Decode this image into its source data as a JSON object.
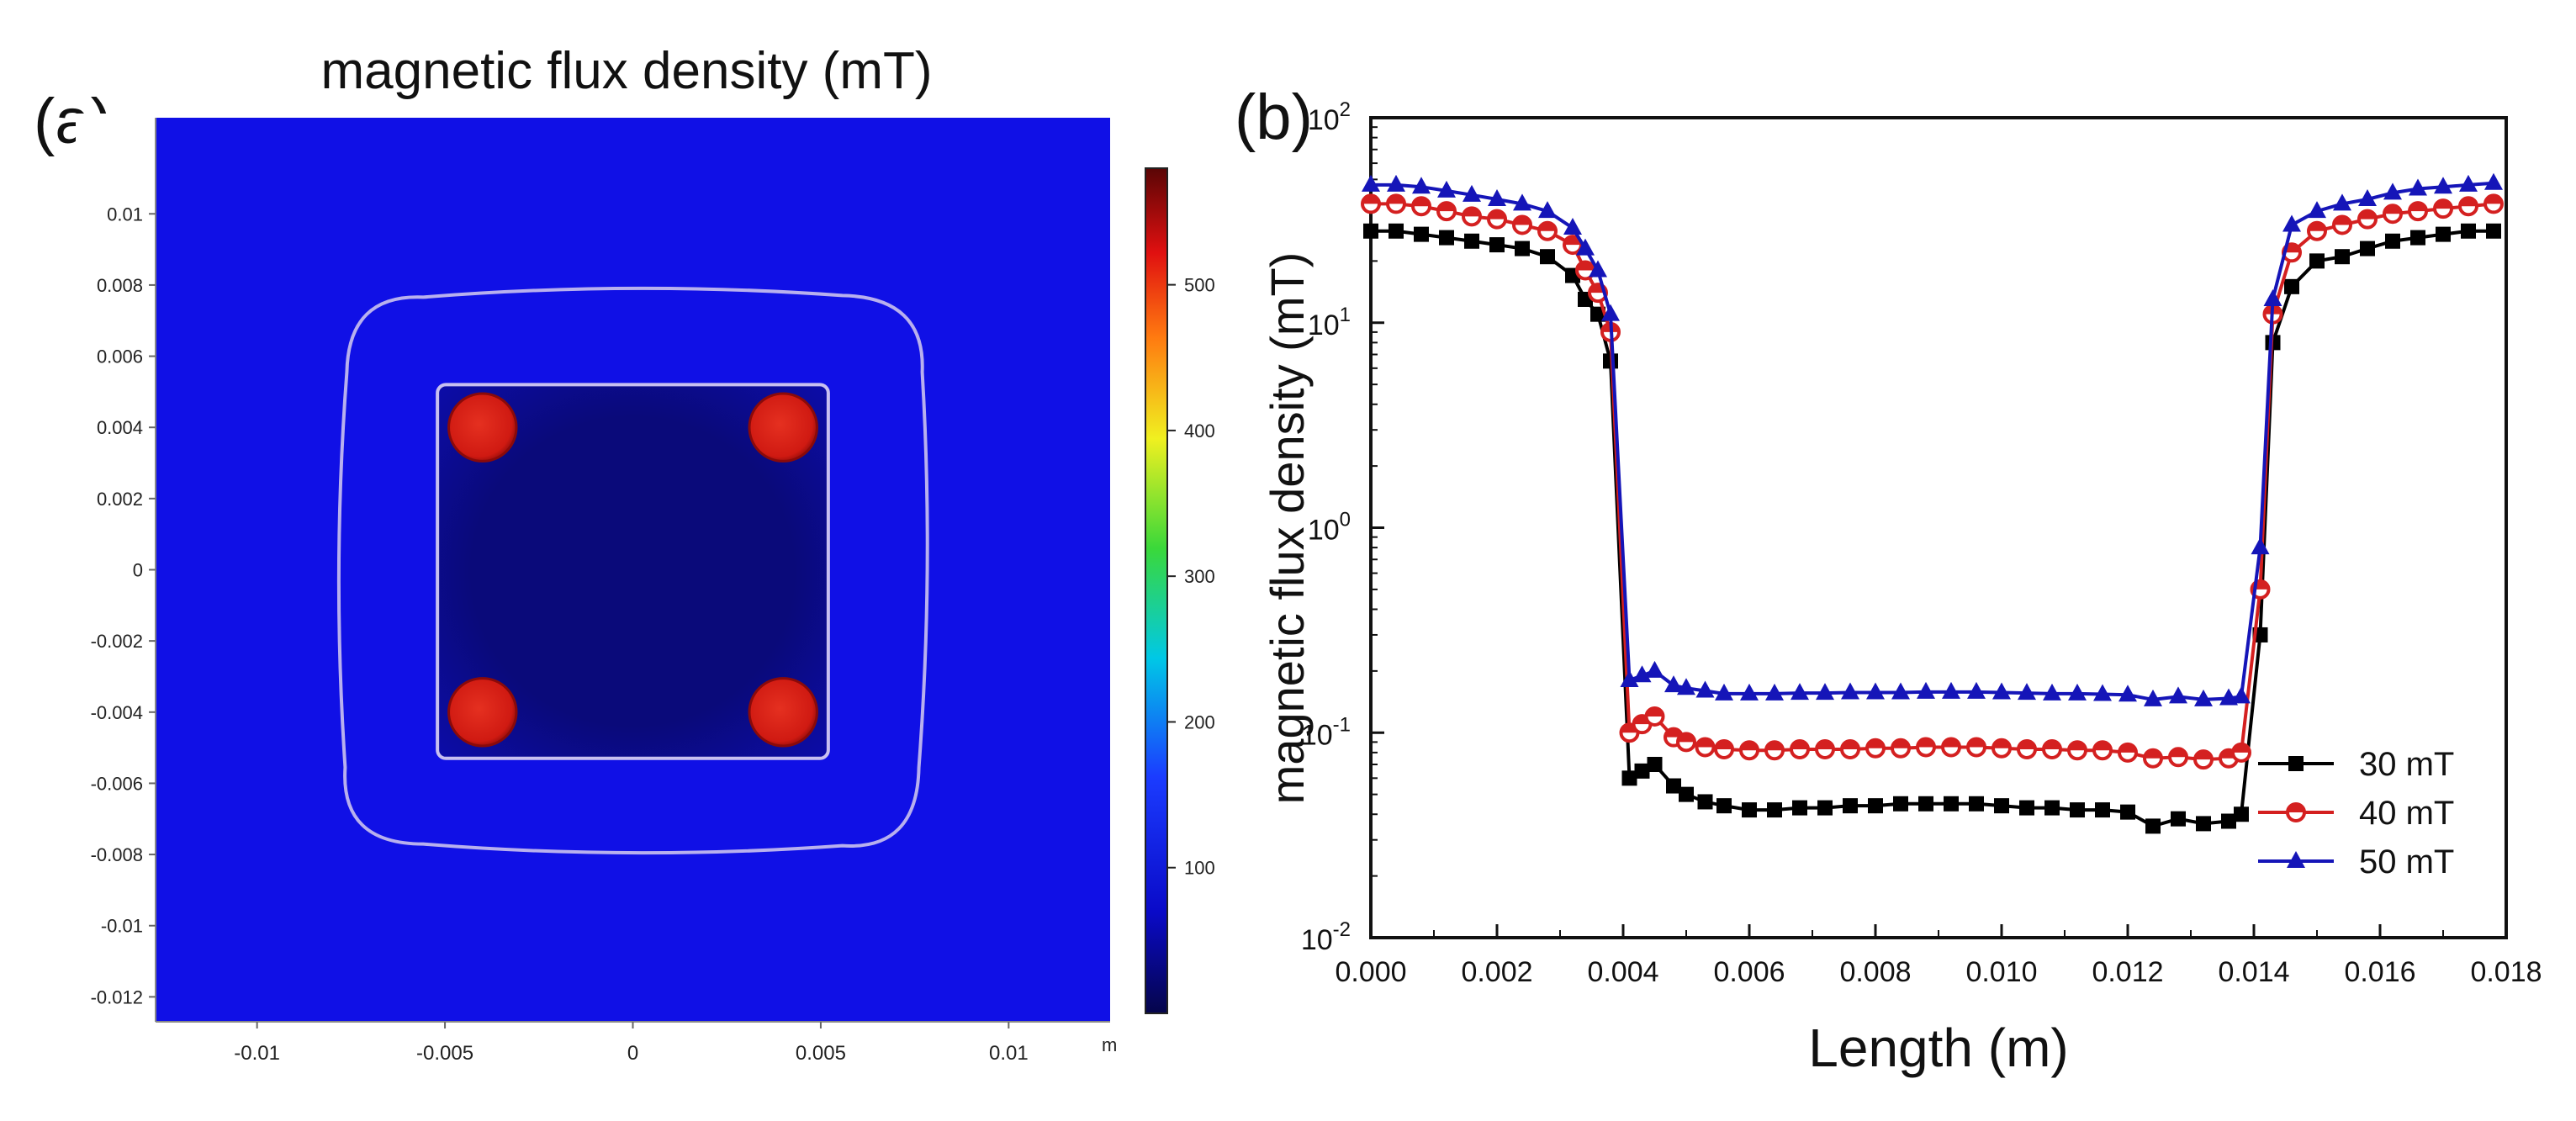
{
  "panel_labels": {
    "a": "(a)",
    "b": "(b)"
  },
  "colors": {
    "field_background": "#1010e6",
    "field_inner": "#0a0a80",
    "magnet": "#e02a18",
    "contour": "#b8b0ee",
    "series_30": "#000000",
    "series_40": "#d42020",
    "series_50": "#1515b8"
  },
  "chart_data": [
    {
      "type": "heatmap",
      "title": "magnetic flux density (mT)",
      "xlim": [
        -0.0127,
        0.0127
      ],
      "ylim": [
        -0.0127,
        0.0127
      ],
      "x_unit": "m",
      "x_ticks": [
        {
          "v": -0.01,
          "label": "-0.01"
        },
        {
          "v": -0.005,
          "label": "-0.005"
        },
        {
          "v": 0,
          "label": "0"
        },
        {
          "v": 0.005,
          "label": "0.005"
        },
        {
          "v": 0.01,
          "label": "0.01"
        }
      ],
      "y_ticks": [
        {
          "v": 0.01,
          "label": "0.01"
        },
        {
          "v": 0.008,
          "label": "0.008"
        },
        {
          "v": 0.006,
          "label": "0.006"
        },
        {
          "v": 0.004,
          "label": "0.004"
        },
        {
          "v": 0.002,
          "label": "0.002"
        },
        {
          "v": 0,
          "label": "0"
        },
        {
          "v": -0.002,
          "label": "-0.002"
        },
        {
          "v": -0.004,
          "label": "-0.004"
        },
        {
          "v": -0.006,
          "label": "-0.006"
        },
        {
          "v": -0.008,
          "label": "-0.008"
        },
        {
          "v": -0.01,
          "label": "-0.01"
        },
        {
          "v": -0.012,
          "label": "-0.012"
        }
      ],
      "colorbar": {
        "range": [
          0,
          580
        ],
        "ticks": [
          {
            "v": 100,
            "label": "100"
          },
          {
            "v": 200,
            "label": "200"
          },
          {
            "v": 300,
            "label": "300"
          },
          {
            "v": 400,
            "label": "400"
          },
          {
            "v": 500,
            "label": "500"
          }
        ]
      },
      "magnets": [
        {
          "x": -0.004,
          "y": 0.004,
          "r": 0.0009
        },
        {
          "x": 0.004,
          "y": 0.004,
          "r": 0.0009
        },
        {
          "x": -0.004,
          "y": -0.004,
          "r": 0.0009
        },
        {
          "x": 0.004,
          "y": -0.004,
          "r": 0.0009
        }
      ],
      "inner_region": {
        "x0": -0.0052,
        "x1": 0.0052,
        "y0": -0.0053,
        "y1": 0.0052
      },
      "outer_contour": {
        "x0": -0.0077,
        "x1": 0.0077,
        "y0": -0.0078,
        "y1": 0.0078
      }
    },
    {
      "type": "line",
      "xlabel": "Length (m)",
      "ylabel": "magnetic flux density (mT)",
      "xlim": [
        0,
        0.018
      ],
      "ylim": [
        0.01,
        100
      ],
      "y_scale": "log",
      "legend_position": "right",
      "x_ticks": [
        {
          "v": 0,
          "label": "0.000"
        },
        {
          "v": 0.002,
          "label": "0.002"
        },
        {
          "v": 0.004,
          "label": "0.004"
        },
        {
          "v": 0.006,
          "label": "0.006"
        },
        {
          "v": 0.008,
          "label": "0.008"
        },
        {
          "v": 0.01,
          "label": "0.010"
        },
        {
          "v": 0.012,
          "label": "0.012"
        },
        {
          "v": 0.014,
          "label": "0.014"
        },
        {
          "v": 0.016,
          "label": "0.016"
        },
        {
          "v": 0.018,
          "label": "0.018"
        }
      ],
      "y_ticks": [
        {
          "v": 0.01,
          "base": "10",
          "exp": "-2"
        },
        {
          "v": 0.1,
          "base": "10",
          "exp": "-1"
        },
        {
          "v": 1,
          "base": "10",
          "exp": "0"
        },
        {
          "v": 10,
          "base": "10",
          "exp": "1"
        },
        {
          "v": 100,
          "base": "10",
          "exp": "2"
        }
      ],
      "series": [
        {
          "name": "30 mT",
          "color": "#000000",
          "marker": "square",
          "x": [
            0,
            0.0004,
            0.0008,
            0.0012,
            0.0016,
            0.002,
            0.0024,
            0.0028,
            0.0032,
            0.0034,
            0.0036,
            0.0038,
            0.0041,
            0.0043,
            0.0045,
            0.0048,
            0.005,
            0.0053,
            0.0056,
            0.006,
            0.0064,
            0.0068,
            0.0072,
            0.0076,
            0.008,
            0.0084,
            0.0088,
            0.0092,
            0.0096,
            0.01,
            0.0104,
            0.0108,
            0.0112,
            0.0116,
            0.012,
            0.0124,
            0.0128,
            0.0132,
            0.0136,
            0.0138,
            0.0141,
            0.0143,
            0.0146,
            0.015,
            0.0154,
            0.0158,
            0.0162,
            0.0166,
            0.017,
            0.0174,
            0.0178
          ],
          "y": [
            28,
            28,
            27,
            26,
            25,
            24,
            23,
            21,
            17,
            13,
            11,
            6.5,
            0.06,
            0.065,
            0.07,
            0.055,
            0.05,
            0.046,
            0.044,
            0.042,
            0.042,
            0.043,
            0.043,
            0.044,
            0.044,
            0.045,
            0.045,
            0.045,
            0.045,
            0.044,
            0.043,
            0.043,
            0.042,
            0.042,
            0.041,
            0.035,
            0.038,
            0.036,
            0.037,
            0.04,
            0.3,
            8,
            15,
            20,
            21,
            23,
            25,
            26,
            27,
            28,
            28
          ]
        },
        {
          "name": "40 mT",
          "color": "#d42020",
          "marker": "circle",
          "x": [
            0,
            0.0004,
            0.0008,
            0.0012,
            0.0016,
            0.002,
            0.0024,
            0.0028,
            0.0032,
            0.0034,
            0.0036,
            0.0038,
            0.0041,
            0.0043,
            0.0045,
            0.0048,
            0.005,
            0.0053,
            0.0056,
            0.006,
            0.0064,
            0.0068,
            0.0072,
            0.0076,
            0.008,
            0.0084,
            0.0088,
            0.0092,
            0.0096,
            0.01,
            0.0104,
            0.0108,
            0.0112,
            0.0116,
            0.012,
            0.0124,
            0.0128,
            0.0132,
            0.0136,
            0.0138,
            0.0141,
            0.0143,
            0.0146,
            0.015,
            0.0154,
            0.0158,
            0.0162,
            0.0166,
            0.017,
            0.0174,
            0.0178
          ],
          "y": [
            38,
            38,
            37,
            35,
            33,
            32,
            30,
            28,
            24,
            18,
            14,
            9,
            0.1,
            0.11,
            0.12,
            0.095,
            0.09,
            0.085,
            0.083,
            0.082,
            0.082,
            0.083,
            0.083,
            0.083,
            0.084,
            0.084,
            0.085,
            0.085,
            0.085,
            0.084,
            0.083,
            0.083,
            0.082,
            0.082,
            0.08,
            0.075,
            0.076,
            0.074,
            0.075,
            0.08,
            0.5,
            11,
            22,
            28,
            30,
            32,
            34,
            35,
            36,
            37,
            38
          ]
        },
        {
          "name": "50 mT",
          "color": "#1515b8",
          "marker": "triangle",
          "x": [
            0,
            0.0004,
            0.0008,
            0.0012,
            0.0016,
            0.002,
            0.0024,
            0.0028,
            0.0032,
            0.0034,
            0.0036,
            0.0038,
            0.0041,
            0.0043,
            0.0045,
            0.0048,
            0.005,
            0.0053,
            0.0056,
            0.006,
            0.0064,
            0.0068,
            0.0072,
            0.0076,
            0.008,
            0.0084,
            0.0088,
            0.0092,
            0.0096,
            0.01,
            0.0104,
            0.0108,
            0.0112,
            0.0116,
            0.012,
            0.0124,
            0.0128,
            0.0132,
            0.0136,
            0.0138,
            0.0141,
            0.0143,
            0.0146,
            0.015,
            0.0154,
            0.0158,
            0.0162,
            0.0166,
            0.017,
            0.0174,
            0.0178
          ],
          "y": [
            47,
            47,
            46,
            44,
            42,
            40,
            38,
            35,
            29,
            23,
            18,
            11,
            0.18,
            0.19,
            0.2,
            0.17,
            0.165,
            0.16,
            0.155,
            0.155,
            0.155,
            0.156,
            0.156,
            0.157,
            0.157,
            0.157,
            0.158,
            0.158,
            0.158,
            0.157,
            0.156,
            0.155,
            0.155,
            0.154,
            0.153,
            0.145,
            0.15,
            0.145,
            0.147,
            0.15,
            0.8,
            13,
            30,
            35,
            38,
            40,
            43,
            45,
            46,
            47,
            48
          ]
        }
      ]
    }
  ]
}
